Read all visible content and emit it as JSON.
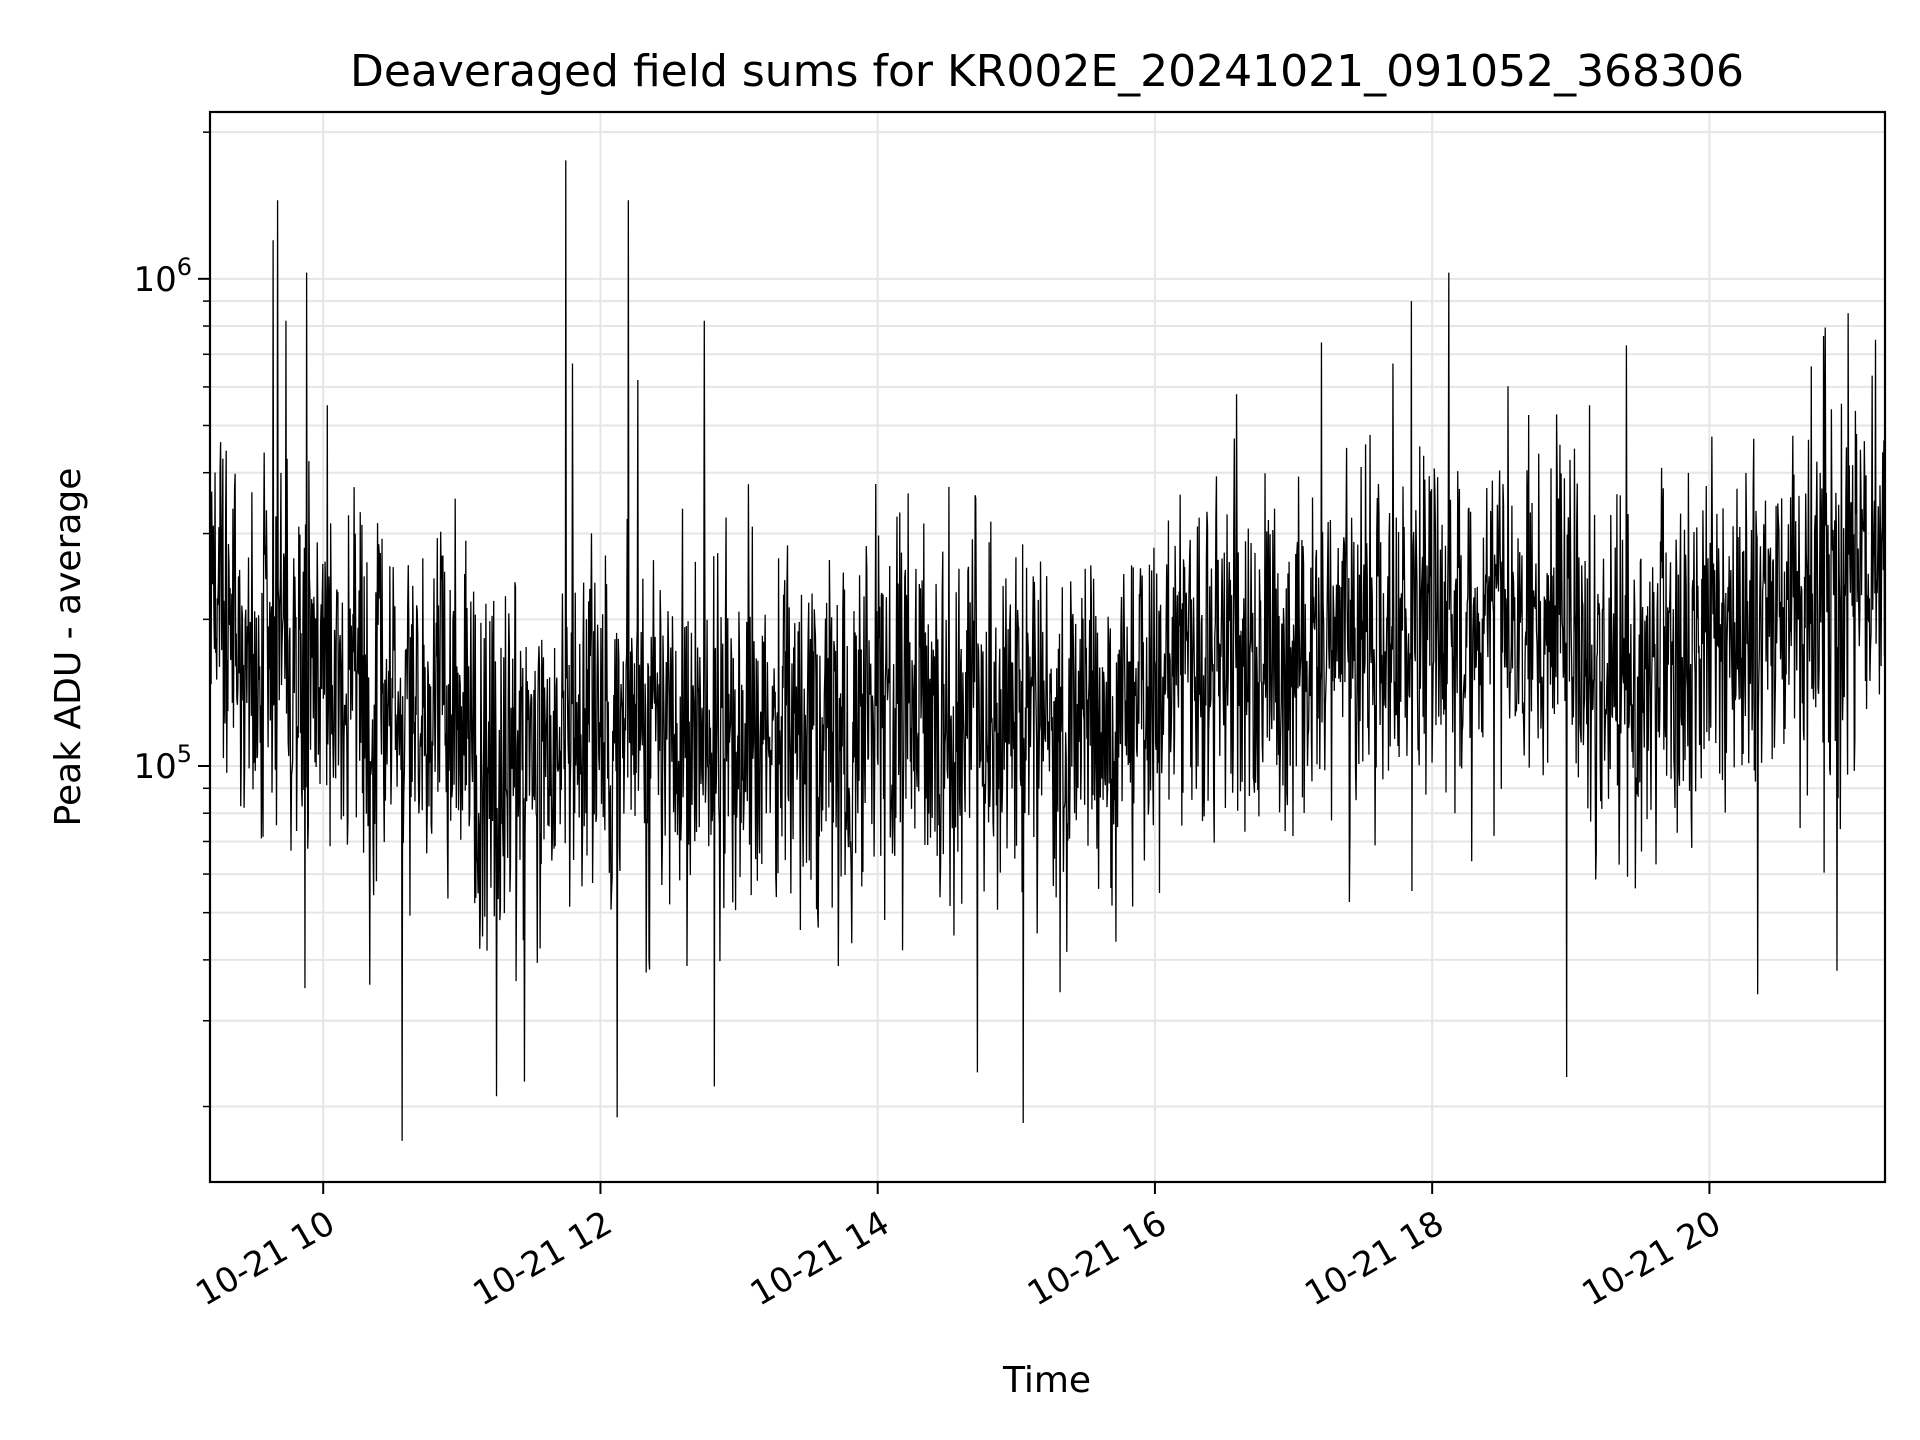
{
  "chart_data": {
    "type": "line",
    "title": "Deaveraged field sums for KR002E_20241021_091052_368306",
    "xlabel": "Time",
    "ylabel": "Peak ADU - average",
    "x_range": [
      "10-21 09:11",
      "10-21 21:16"
    ],
    "y_scale": "log",
    "ylim": [
      14000,
      2200000
    ],
    "grid": true,
    "line_color": "#000000",
    "grid_color": "#e6e6e6",
    "x_ticks": [
      {
        "hour": 10,
        "label": "10-21 10"
      },
      {
        "hour": 12,
        "label": "10-21 12"
      },
      {
        "hour": 14,
        "label": "10-21 14"
      },
      {
        "hour": 16,
        "label": "10-21 16"
      },
      {
        "hour": 18,
        "label": "10-21 18"
      },
      {
        "hour": 20,
        "label": "10-21 20"
      }
    ],
    "y_ticks": [
      {
        "value": 100000,
        "label_base": "10",
        "label_exp": "5"
      },
      {
        "value": 1000000,
        "label_base": "10",
        "label_exp": "6"
      }
    ],
    "series": [
      {
        "values_note_hours": [
          9.18,
          9.3,
          9.5,
          9.75,
          10.0,
          10.25,
          10.5,
          10.75,
          11.0,
          11.25,
          11.5,
          11.75,
          12.0,
          12.25,
          12.5,
          12.75,
          13.0,
          13.25,
          13.5,
          13.75,
          14.0,
          14.25,
          14.5,
          14.75,
          15.0,
          15.25,
          15.5,
          15.75,
          16.0,
          16.25,
          16.5,
          16.75,
          17.0,
          17.25,
          17.5,
          17.75,
          18.0,
          18.25,
          18.5,
          18.75,
          19.0,
          19.25,
          19.5,
          19.75,
          20.0,
          20.25,
          20.5,
          20.75,
          21.0,
          21.26
        ],
        "baseline": [
          250000,
          200000,
          170000,
          160000,
          150000,
          135000,
          130000,
          130000,
          120000,
          105000,
          100000,
          110000,
          120000,
          120000,
          120000,
          115000,
          115000,
          115000,
          115000,
          120000,
          125000,
          130000,
          130000,
          130000,
          125000,
          120000,
          120000,
          130000,
          150000,
          160000,
          165000,
          165000,
          170000,
          180000,
          185000,
          190000,
          195000,
          200000,
          205000,
          200000,
          180000,
          150000,
          150000,
          170000,
          190000,
          200000,
          210000,
          220000,
          230000,
          300000
        ]
      }
    ],
    "spikes": [
      {
        "hour": 9.67,
        "value": 1450000
      },
      {
        "hour": 9.64,
        "value": 1200000
      },
      {
        "hour": 9.88,
        "value": 1030000
      },
      {
        "hour": 9.73,
        "value": 820000
      },
      {
        "hour": 10.03,
        "value": 550000
      },
      {
        "hour": 11.75,
        "value": 1750000
      },
      {
        "hour": 12.2,
        "value": 1450000
      },
      {
        "hour": 12.75,
        "value": 820000
      },
      {
        "hour": 11.8,
        "value": 670000
      },
      {
        "hour": 12.27,
        "value": 620000
      },
      {
        "hour": 17.2,
        "value": 740000
      },
      {
        "hour": 17.85,
        "value": 900000
      },
      {
        "hour": 18.12,
        "value": 1030000
      },
      {
        "hour": 19.4,
        "value": 730000
      },
      {
        "hour": 21.2,
        "value": 750000
      },
      {
        "hour": 21.0,
        "value": 850000
      },
      {
        "hour": 10.57,
        "value": 17000
      },
      {
        "hour": 15.05,
        "value": 18500
      },
      {
        "hour": 12.12,
        "value": 19000
      },
      {
        "hour": 11.25,
        "value": 21000
      },
      {
        "hour": 18.97,
        "value": 23000
      },
      {
        "hour": 12.82,
        "value": 22000
      },
      {
        "hour": 14.72,
        "value": 23500
      },
      {
        "hour": 11.45,
        "value": 22500
      },
      {
        "hour": 20.35,
        "value": 34000
      },
      {
        "hour": 20.92,
        "value": 38000
      },
      {
        "hour": 9.87,
        "value": 35000
      }
    ]
  }
}
